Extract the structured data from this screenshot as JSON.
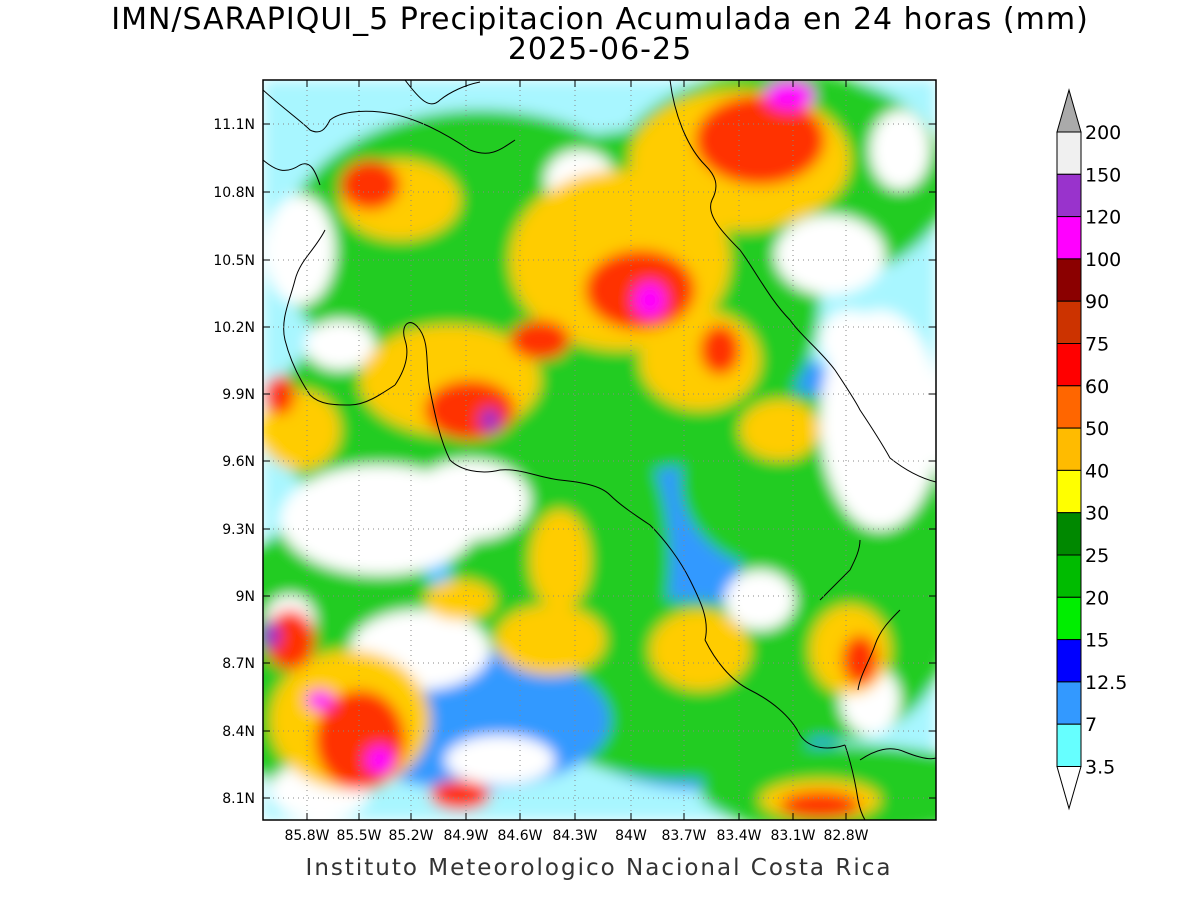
{
  "title_line1": "IMN/SARAPIQUI_5 Precipitacion Acumulada en 24 horas (mm)",
  "title_line2": "2025-06-25",
  "footer": "Instituto Meteorologico Nacional Costa Rica",
  "x_ticks": [
    "85.8W",
    "85.5W",
    "85.2W",
    "84.9W",
    "84.6W",
    "84.3W",
    "84W",
    "83.7W",
    "83.4W",
    "83.1W",
    "82.8W"
  ],
  "y_ticks": [
    "11.1N",
    "10.8N",
    "10.5N",
    "10.2N",
    "9.9N",
    "9.6N",
    "9.3N",
    "9N",
    "8.7N",
    "8.4N",
    "8.1N"
  ],
  "colorbar": {
    "levels": [
      "200",
      "150",
      "120",
      "100",
      "90",
      "75",
      "60",
      "50",
      "40",
      "30",
      "25",
      "20",
      "15",
      "12.5",
      "7",
      "3.5"
    ],
    "colors": [
      "#f0f0f0",
      "#9933cc",
      "#ff00ff",
      "#8b0000",
      "#cc3300",
      "#ff0000",
      "#ff6600",
      "#ffbb00",
      "#ffff00",
      "#008800",
      "#00bb00",
      "#00ee00",
      "#0000ff",
      "#3399ff",
      "#66ffff"
    ],
    "over_color": "#aaaaaa",
    "under_color": "#ffffff"
  }
}
